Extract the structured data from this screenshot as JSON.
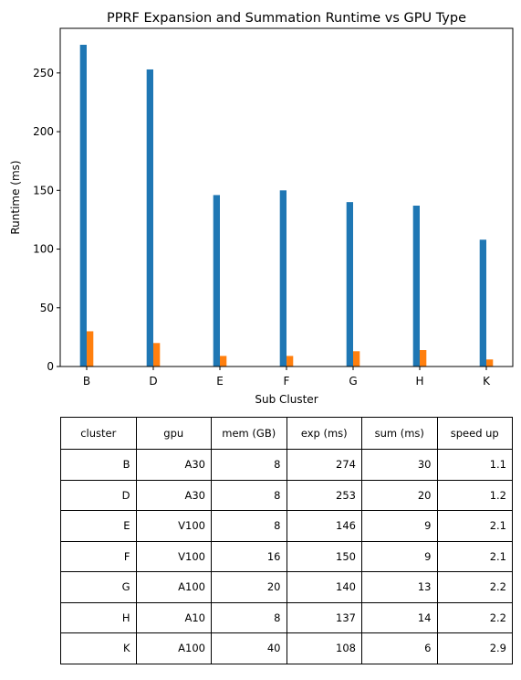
{
  "chart_data": {
    "type": "bar",
    "title": "PPRF Expansion and Summation Runtime vs GPU Type",
    "xlabel": "Sub Cluster",
    "ylabel": "Runtime (ms)",
    "categories": [
      "B",
      "D",
      "E",
      "F",
      "G",
      "H",
      "K"
    ],
    "series": [
      {
        "values": [
          274,
          253,
          146,
          150,
          140,
          137,
          108
        ],
        "color": "#1f77b4"
      },
      {
        "values": [
          30,
          20,
          9,
          9,
          13,
          14,
          6
        ],
        "color": "#ff7f0e"
      }
    ],
    "ylim": [
      0,
      288
    ],
    "yticks": [
      0,
      50,
      100,
      150,
      200,
      250
    ],
    "grid": false
  },
  "table": {
    "headers": [
      "cluster",
      "gpu",
      "mem (GB)",
      "exp (ms)",
      "sum (ms)",
      "speed up"
    ],
    "rows": [
      [
        "B",
        "A30",
        "8",
        "274",
        "30",
        "1.1"
      ],
      [
        "D",
        "A30",
        "8",
        "253",
        "20",
        "1.2"
      ],
      [
        "E",
        "V100",
        "8",
        "146",
        "9",
        "2.1"
      ],
      [
        "F",
        "V100",
        "16",
        "150",
        "9",
        "2.1"
      ],
      [
        "G",
        "A100",
        "20",
        "140",
        "13",
        "2.2"
      ],
      [
        "H",
        "A10",
        "8",
        "137",
        "14",
        "2.2"
      ],
      [
        "K",
        "A100",
        "40",
        "108",
        "6",
        "2.9"
      ]
    ]
  }
}
